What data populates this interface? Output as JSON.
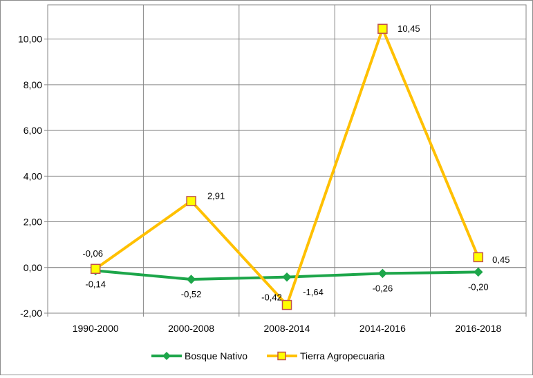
{
  "chart_data": {
    "type": "line",
    "categories": [
      "1990-2000",
      "2000-2008",
      "2008-2014",
      "2014-2016",
      "2016-2018"
    ],
    "ylim": [
      -2,
      11.5
    ],
    "yticks": [
      -2,
      0,
      2,
      4,
      6,
      8,
      10
    ],
    "ytick_labels": [
      "-2,00",
      "0,00",
      "2,00",
      "4,00",
      "6,00",
      "8,00",
      "10,00"
    ],
    "grid": true,
    "legend": "bottom",
    "series": [
      {
        "name": "Bosque Nativo",
        "values": [
          -0.14,
          -0.52,
          -0.42,
          -0.26,
          -0.2
        ],
        "labels": [
          "-0,14",
          "-0,52",
          "-0,42",
          "-0,26",
          "-0,20"
        ],
        "color": "#1da64a",
        "marker": "diamond"
      },
      {
        "name": "Tierra Agropecuaria",
        "values": [
          -0.06,
          2.91,
          -1.64,
          10.45,
          0.45
        ],
        "labels": [
          "-0,06",
          "2,91",
          "-1,64",
          "10,45",
          "0,45"
        ],
        "color": "#ffc000",
        "marker_fill": "#ffff00",
        "marker_stroke": "#c0504d",
        "marker": "square"
      }
    ]
  }
}
